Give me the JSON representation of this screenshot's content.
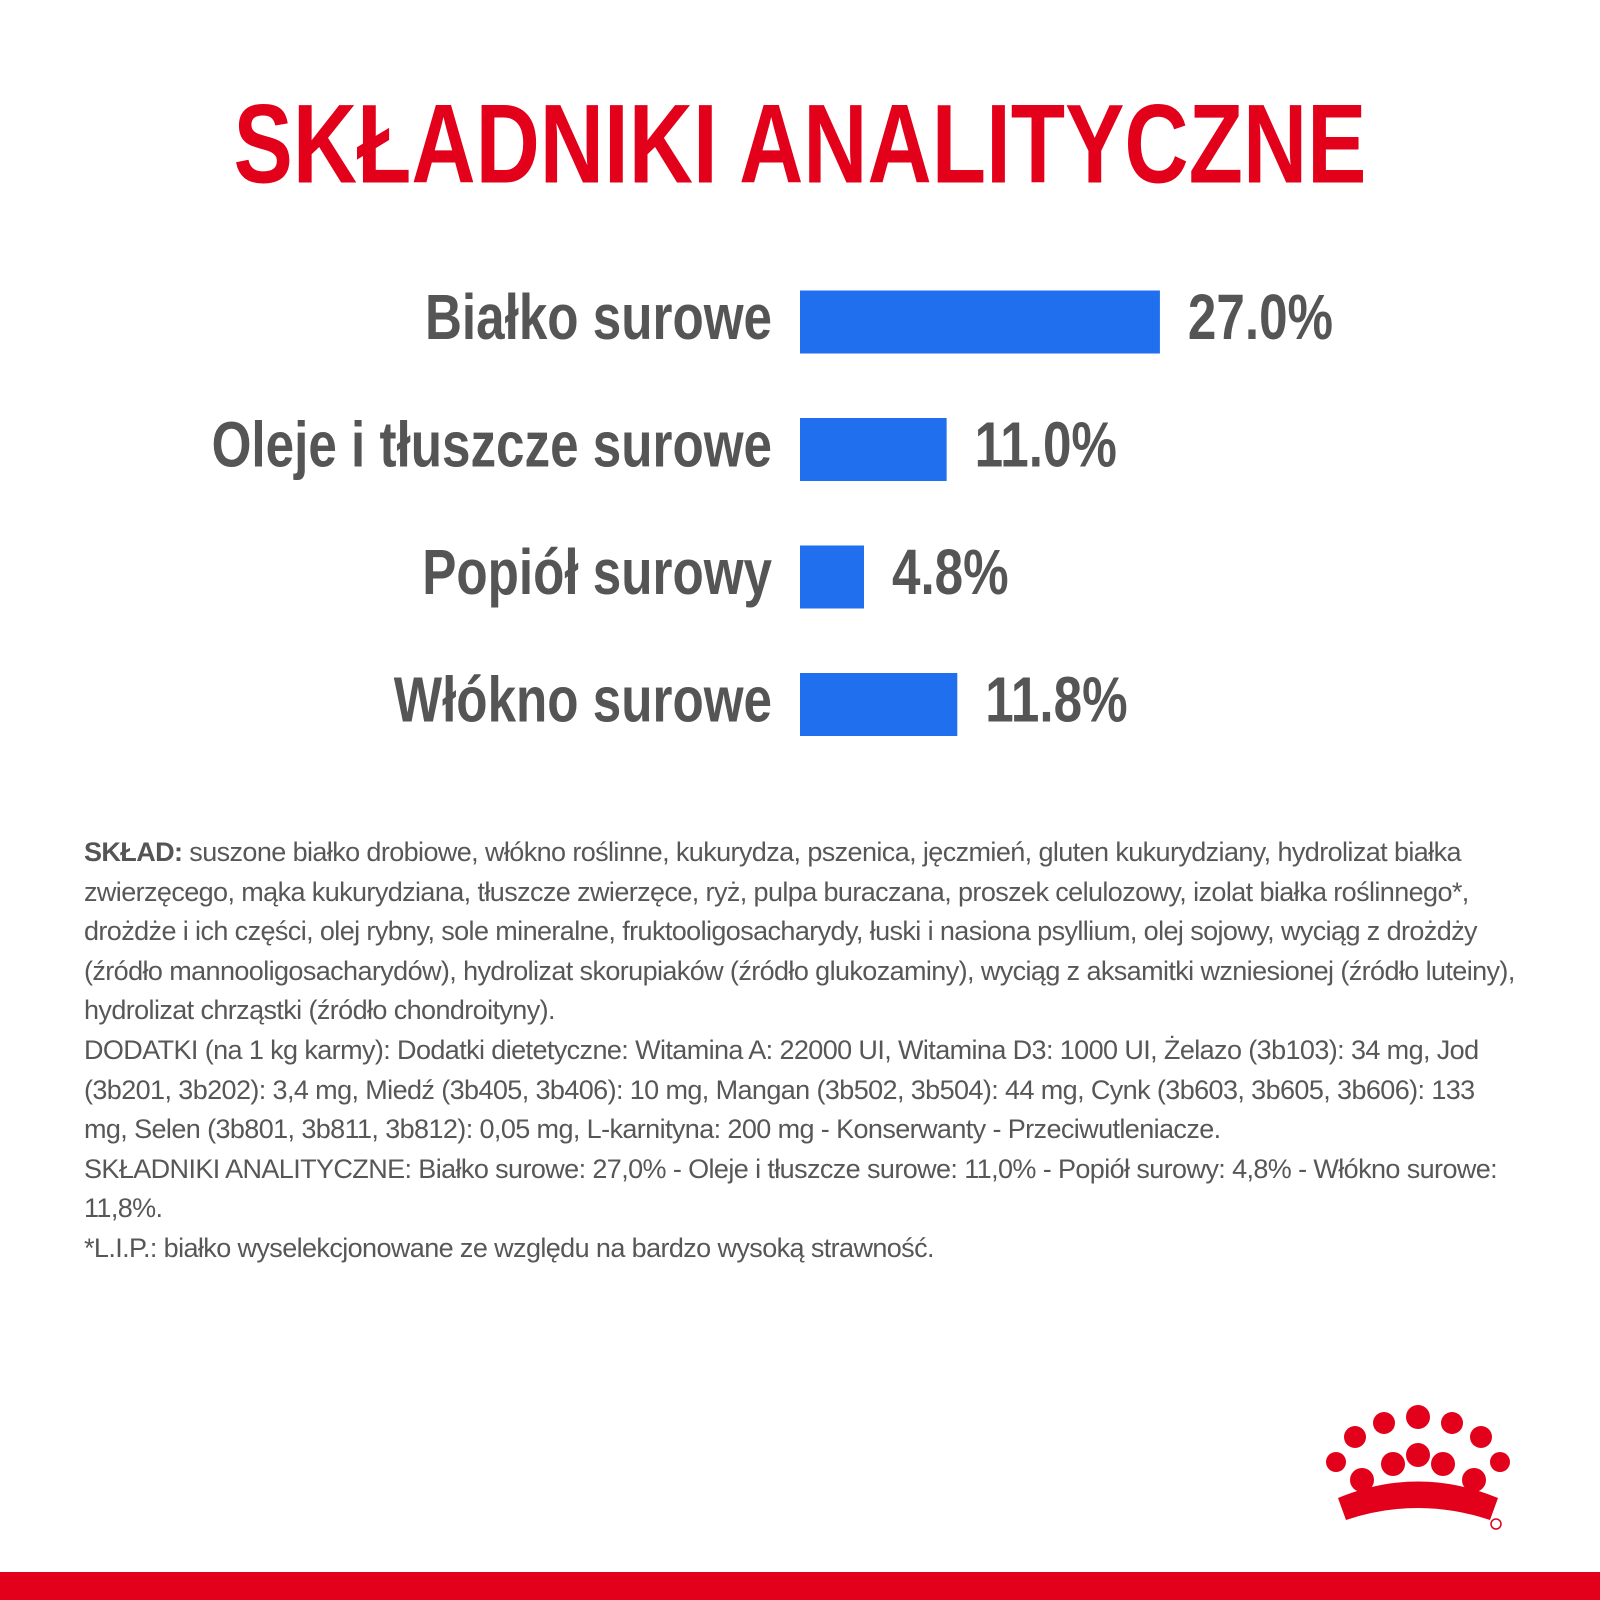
{
  "chart_data": {
    "type": "bar",
    "title": "SKŁADNIKI ANALITYCZNE",
    "categories": [
      "Białko surowe",
      "Oleje i tłuszcze surowe",
      "Popiół surowy",
      "Włókno surowe"
    ],
    "values": [
      27.0,
      11.0,
      4.8,
      11.8
    ],
    "value_labels": [
      "27.0%",
      "11.0%",
      "4.8%",
      "11.8%"
    ],
    "color": "#1f6fef"
  },
  "composition": {
    "label": "SKŁAD:",
    "text": "suszone białko drobiowe, włókno roślinne, kukurydza, pszenica, jęczmień, gluten kukurydziany, hydrolizat białka zwierzęcego, mąka kukurydziana, tłuszcze zwierzęce, ryż, pulpa buraczana, proszek celulozowy, izolat białka roślinnego*, drożdże i ich części, olej rybny, sole mineralne, fruktooligosacharydy, łuski i nasiona psyllium, olej sojowy, wyciąg z drożdży (źródło mannooligosacharydów), hydrolizat skorupiaków (źródło glukozaminy), wyciąg z aksamitki wzniesionej (źródło luteiny), hydrolizat chrząstki (źródło chondroityny)."
  },
  "additives": "DODATKI (na 1 kg karmy): Dodatki dietetyczne: Witamina A: 22000 UI, Witamina D3: 1000 UI, Żelazo (3b103): 34 mg, Jod (3b201, 3b202): 3,4 mg, Miedź (3b405, 3b406): 10 mg, Mangan (3b502, 3b504): 44 mg, Cynk (3b603, 3b605, 3b606): 133 mg, Selen (3b801, 3b811, 3b812): 0,05 mg, L-karnityna: 200 mg - Konserwanty - Przeciwutleniacze.",
  "analytical": "SKŁADNIKI ANALITYCZNE: Białko surowe: 27,0% - Oleje i tłuszcze surowe: 11,0% - Popiół surowy: 4,8% - Włókno surowe: 11,8%.",
  "footnote": "*L.I.P.: białko wyselekcjonowane ze względu na bardzo wysoką strawność."
}
